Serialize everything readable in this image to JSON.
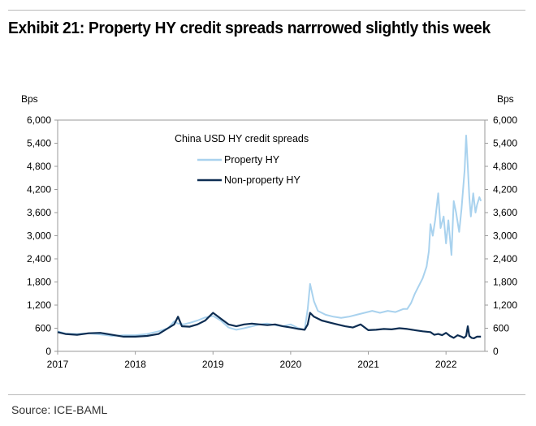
{
  "title": "Exhibit 21: Property HY credit spreads narrrowed slightly this week",
  "source": "Source: ICE-BAML",
  "chart_data": {
    "type": "line",
    "title": "China USD HY credit spreads",
    "ylabel_left": "Bps",
    "ylabel_right": "Bps",
    "xlabel": "",
    "ylim": [
      0,
      6000
    ],
    "xlim": [
      2017,
      2022.5
    ],
    "yticks": [
      "0",
      "600",
      "1,200",
      "1,800",
      "2,400",
      "3,000",
      "3,600",
      "4,200",
      "4,800",
      "5,400",
      "6,000"
    ],
    "xticks": [
      "2017",
      "2018",
      "2019",
      "2020",
      "2021",
      "2022"
    ],
    "legend_position": "top-center",
    "series": [
      {
        "name": "Property HY",
        "color": "#a9d2ee",
        "x": [
          2017.0,
          2017.1,
          2017.25,
          2017.4,
          2017.55,
          2017.7,
          2017.85,
          2018.0,
          2018.15,
          2018.3,
          2018.42,
          2018.5,
          2018.55,
          2018.62,
          2018.7,
          2018.8,
          2018.9,
          2019.0,
          2019.1,
          2019.2,
          2019.3,
          2019.4,
          2019.5,
          2019.6,
          2019.7,
          2019.8,
          2019.9,
          2020.0,
          2020.1,
          2020.18,
          2020.22,
          2020.25,
          2020.3,
          2020.35,
          2020.45,
          2020.55,
          2020.65,
          2020.75,
          2020.85,
          2020.95,
          2021.05,
          2021.15,
          2021.25,
          2021.35,
          2021.45,
          2021.5,
          2021.55,
          2021.6,
          2021.65,
          2021.7,
          2021.75,
          2021.78,
          2021.8,
          2021.83,
          2021.86,
          2021.9,
          2021.93,
          2021.97,
          2022.0,
          2022.03,
          2022.07,
          2022.1,
          2022.13,
          2022.17,
          2022.2,
          2022.22,
          2022.24,
          2022.26,
          2022.28,
          2022.3,
          2022.32,
          2022.35,
          2022.38,
          2022.4,
          2022.43,
          2022.45
        ],
        "values": [
          520,
          460,
          450,
          470,
          440,
          400,
          420,
          420,
          450,
          520,
          600,
          780,
          720,
          700,
          740,
          800,
          880,
          920,
          800,
          620,
          560,
          600,
          650,
          700,
          720,
          680,
          650,
          700,
          600,
          560,
          1100,
          1750,
          1300,
          1050,
          950,
          900,
          870,
          900,
          950,
          1000,
          1050,
          1000,
          1050,
          1020,
          1100,
          1100,
          1250,
          1500,
          1700,
          1900,
          2200,
          2600,
          3300,
          3000,
          3400,
          4100,
          3200,
          3500,
          2800,
          3400,
          2500,
          3900,
          3600,
          3100,
          3700,
          4200,
          4700,
          5600,
          4800,
          4000,
          3500,
          4100,
          3600,
          3800,
          4000,
          3900
        ]
      },
      {
        "name": "Non-property HY",
        "color": "#0d2d52",
        "x": [
          2017.0,
          2017.1,
          2017.25,
          2017.4,
          2017.55,
          2017.7,
          2017.85,
          2018.0,
          2018.15,
          2018.3,
          2018.42,
          2018.5,
          2018.55,
          2018.6,
          2018.7,
          2018.8,
          2018.9,
          2019.0,
          2019.1,
          2019.2,
          2019.3,
          2019.4,
          2019.5,
          2019.6,
          2019.7,
          2019.8,
          2019.9,
          2020.0,
          2020.1,
          2020.18,
          2020.22,
          2020.25,
          2020.3,
          2020.4,
          2020.5,
          2020.6,
          2020.7,
          2020.8,
          2020.9,
          2021.0,
          2021.1,
          2021.2,
          2021.3,
          2021.4,
          2021.5,
          2021.6,
          2021.7,
          2021.8,
          2021.85,
          2021.9,
          2021.95,
          2022.0,
          2022.05,
          2022.1,
          2022.15,
          2022.2,
          2022.23,
          2022.26,
          2022.28,
          2022.3,
          2022.33,
          2022.36,
          2022.4,
          2022.45
        ],
        "values": [
          500,
          450,
          430,
          470,
          480,
          430,
          380,
          380,
          400,
          450,
          600,
          700,
          900,
          650,
          640,
          700,
          800,
          1000,
          850,
          700,
          650,
          700,
          720,
          700,
          680,
          700,
          650,
          620,
          580,
          560,
          700,
          1000,
          900,
          800,
          750,
          700,
          650,
          620,
          700,
          550,
          560,
          580,
          570,
          600,
          580,
          550,
          520,
          500,
          430,
          450,
          420,
          480,
          400,
          350,
          420,
          380,
          350,
          400,
          650,
          400,
          350,
          340,
          380,
          380
        ]
      }
    ]
  }
}
